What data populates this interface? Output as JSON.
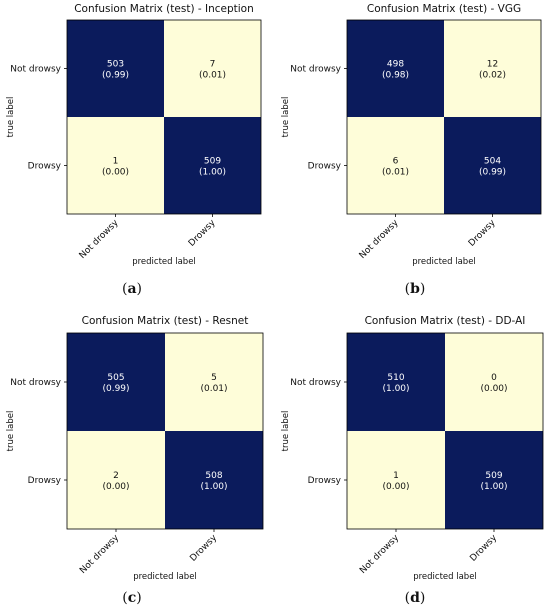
{
  "colors": {
    "dark": "#0b1b5c",
    "light": "#fefdd9",
    "text_on_dark": "#ffffff",
    "text_on_light": "#111111"
  },
  "chart_data": [
    {
      "type": "heatmap",
      "title": "Confusion Matrix (test) - Inception",
      "xlabel": "predicted label",
      "ylabel": "true label",
      "x_categories": [
        "Not drowsy",
        "Drowsy"
      ],
      "y_categories": [
        "Not drowsy",
        "Drowsy"
      ],
      "values": [
        [
          503,
          7
        ],
        [
          1,
          509
        ]
      ],
      "fractions": [
        [
          "(0.99)",
          "(0.01)"
        ],
        [
          "(0.00)",
          "(1.00)"
        ]
      ],
      "caption": [
        "(",
        "a",
        ")"
      ]
    },
    {
      "type": "heatmap",
      "title": "Confusion Matrix (test) - VGG",
      "xlabel": "predicted label",
      "ylabel": "true label",
      "x_categories": [
        "Not drowsy",
        "Drowsy"
      ],
      "y_categories": [
        "Not drowsy",
        "Drowsy"
      ],
      "values": [
        [
          498,
          12
        ],
        [
          6,
          504
        ]
      ],
      "fractions": [
        [
          "(0.98)",
          "(0.02)"
        ],
        [
          "(0.01)",
          "(0.99)"
        ]
      ],
      "caption": [
        "(",
        "b",
        ")"
      ]
    },
    {
      "type": "heatmap",
      "title": "Confusion Matrix (test) - Resnet",
      "xlabel": "predicted label",
      "ylabel": "true label",
      "x_categories": [
        "Not drowsy",
        "Drowsy"
      ],
      "y_categories": [
        "Not drowsy",
        "Drowsy"
      ],
      "values": [
        [
          505,
          5
        ],
        [
          2,
          508
        ]
      ],
      "fractions": [
        [
          "(0.99)",
          "(0.01)"
        ],
        [
          "(0.00)",
          "(1.00)"
        ]
      ],
      "caption": [
        "(",
        "c",
        ")"
      ]
    },
    {
      "type": "heatmap",
      "title": "Confusion Matrix (test) - DD-AI",
      "xlabel": "predicted label",
      "ylabel": "true label",
      "x_categories": [
        "Not drowsy",
        "Drowsy"
      ],
      "y_categories": [
        "Not drowsy",
        "Drowsy"
      ],
      "values": [
        [
          510,
          0
        ],
        [
          1,
          509
        ]
      ],
      "fractions": [
        [
          "(1.00)",
          "(0.00)"
        ],
        [
          "(0.00)",
          "(1.00)"
        ]
      ],
      "caption": [
        "(",
        "d",
        ")"
      ]
    }
  ]
}
